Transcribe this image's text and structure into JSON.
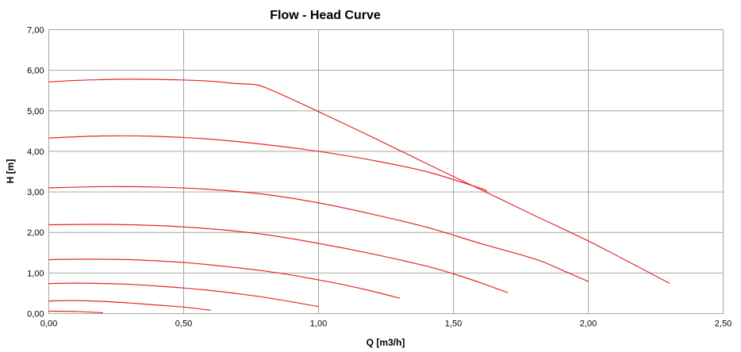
{
  "chart_data": {
    "type": "line",
    "title": "Flow - Head Curve",
    "xlabel": "Q [m3/h]",
    "ylabel": "H [m]",
    "xlim": [
      0,
      2.5
    ],
    "ylim": [
      0,
      7
    ],
    "grid": true,
    "x_ticks": [
      "0,00",
      "0,50",
      "1,00",
      "1,50",
      "2,00",
      "2,50"
    ],
    "y_ticks": [
      "0,00",
      "1,00",
      "2,00",
      "3,00",
      "4,00",
      "5,00",
      "6,00",
      "7,00"
    ],
    "line_color": "#e8262b",
    "series": [
      {
        "points": [
          [
            0,
            0.06
          ],
          [
            0.1,
            0.05
          ],
          [
            0.2,
            0.02
          ]
        ]
      },
      {
        "points": [
          [
            0,
            0.31
          ],
          [
            0.1,
            0.32
          ],
          [
            0.2,
            0.3
          ],
          [
            0.3,
            0.26
          ],
          [
            0.4,
            0.21
          ],
          [
            0.5,
            0.16
          ],
          [
            0.6,
            0.08
          ]
        ]
      },
      {
        "points": [
          [
            0,
            0.74
          ],
          [
            0.1,
            0.75
          ],
          [
            0.2,
            0.74
          ],
          [
            0.3,
            0.72
          ],
          [
            0.4,
            0.68
          ],
          [
            0.5,
            0.63
          ],
          [
            0.6,
            0.57
          ],
          [
            0.7,
            0.49
          ],
          [
            0.8,
            0.4
          ],
          [
            0.9,
            0.29
          ],
          [
            1.0,
            0.17
          ]
        ]
      },
      {
        "points": [
          [
            0,
            1.33
          ],
          [
            0.1,
            1.34
          ],
          [
            0.2,
            1.34
          ],
          [
            0.3,
            1.33
          ],
          [
            0.4,
            1.3
          ],
          [
            0.5,
            1.26
          ],
          [
            0.6,
            1.2
          ],
          [
            0.7,
            1.13
          ],
          [
            0.8,
            1.05
          ],
          [
            0.9,
            0.95
          ],
          [
            1.0,
            0.83
          ],
          [
            1.1,
            0.7
          ],
          [
            1.2,
            0.55
          ],
          [
            1.3,
            0.38
          ]
        ]
      },
      {
        "points": [
          [
            0,
            2.19
          ],
          [
            0.2,
            2.2
          ],
          [
            0.4,
            2.17
          ],
          [
            0.6,
            2.09
          ],
          [
            0.8,
            1.95
          ],
          [
            1.0,
            1.73
          ],
          [
            1.2,
            1.47
          ],
          [
            1.4,
            1.17
          ],
          [
            1.5,
            0.98
          ],
          [
            1.6,
            0.76
          ],
          [
            1.7,
            0.52
          ]
        ]
      },
      {
        "points": [
          [
            0,
            3.1
          ],
          [
            0.2,
            3.13
          ],
          [
            0.4,
            3.12
          ],
          [
            0.6,
            3.06
          ],
          [
            0.8,
            2.94
          ],
          [
            1.0,
            2.73
          ],
          [
            1.2,
            2.45
          ],
          [
            1.4,
            2.13
          ],
          [
            1.6,
            1.73
          ],
          [
            1.8,
            1.35
          ],
          [
            1.9,
            1.08
          ],
          [
            2.0,
            0.79
          ]
        ]
      },
      {
        "points": [
          [
            0,
            4.33
          ],
          [
            0.2,
            4.38
          ],
          [
            0.4,
            4.37
          ],
          [
            0.6,
            4.3
          ],
          [
            0.8,
            4.17
          ],
          [
            1.0,
            4.0
          ],
          [
            1.2,
            3.78
          ],
          [
            1.4,
            3.5
          ],
          [
            1.6,
            3.09
          ],
          [
            1.62,
            3.02
          ]
        ]
      },
      {
        "points": [
          [
            0,
            5.71
          ],
          [
            0.1,
            5.75
          ],
          [
            0.3,
            5.78
          ],
          [
            0.5,
            5.76
          ],
          [
            0.6,
            5.73
          ],
          [
            0.7,
            5.67
          ],
          [
            0.76,
            5.65
          ],
          [
            0.8,
            5.58
          ],
          [
            0.9,
            5.29
          ],
          [
            1.0,
            4.98
          ],
          [
            1.2,
            4.35
          ],
          [
            1.4,
            3.7
          ],
          [
            1.6,
            3.06
          ],
          [
            1.8,
            2.42
          ],
          [
            2.0,
            1.79
          ],
          [
            2.2,
            1.1
          ],
          [
            2.3,
            0.75
          ]
        ]
      }
    ]
  }
}
